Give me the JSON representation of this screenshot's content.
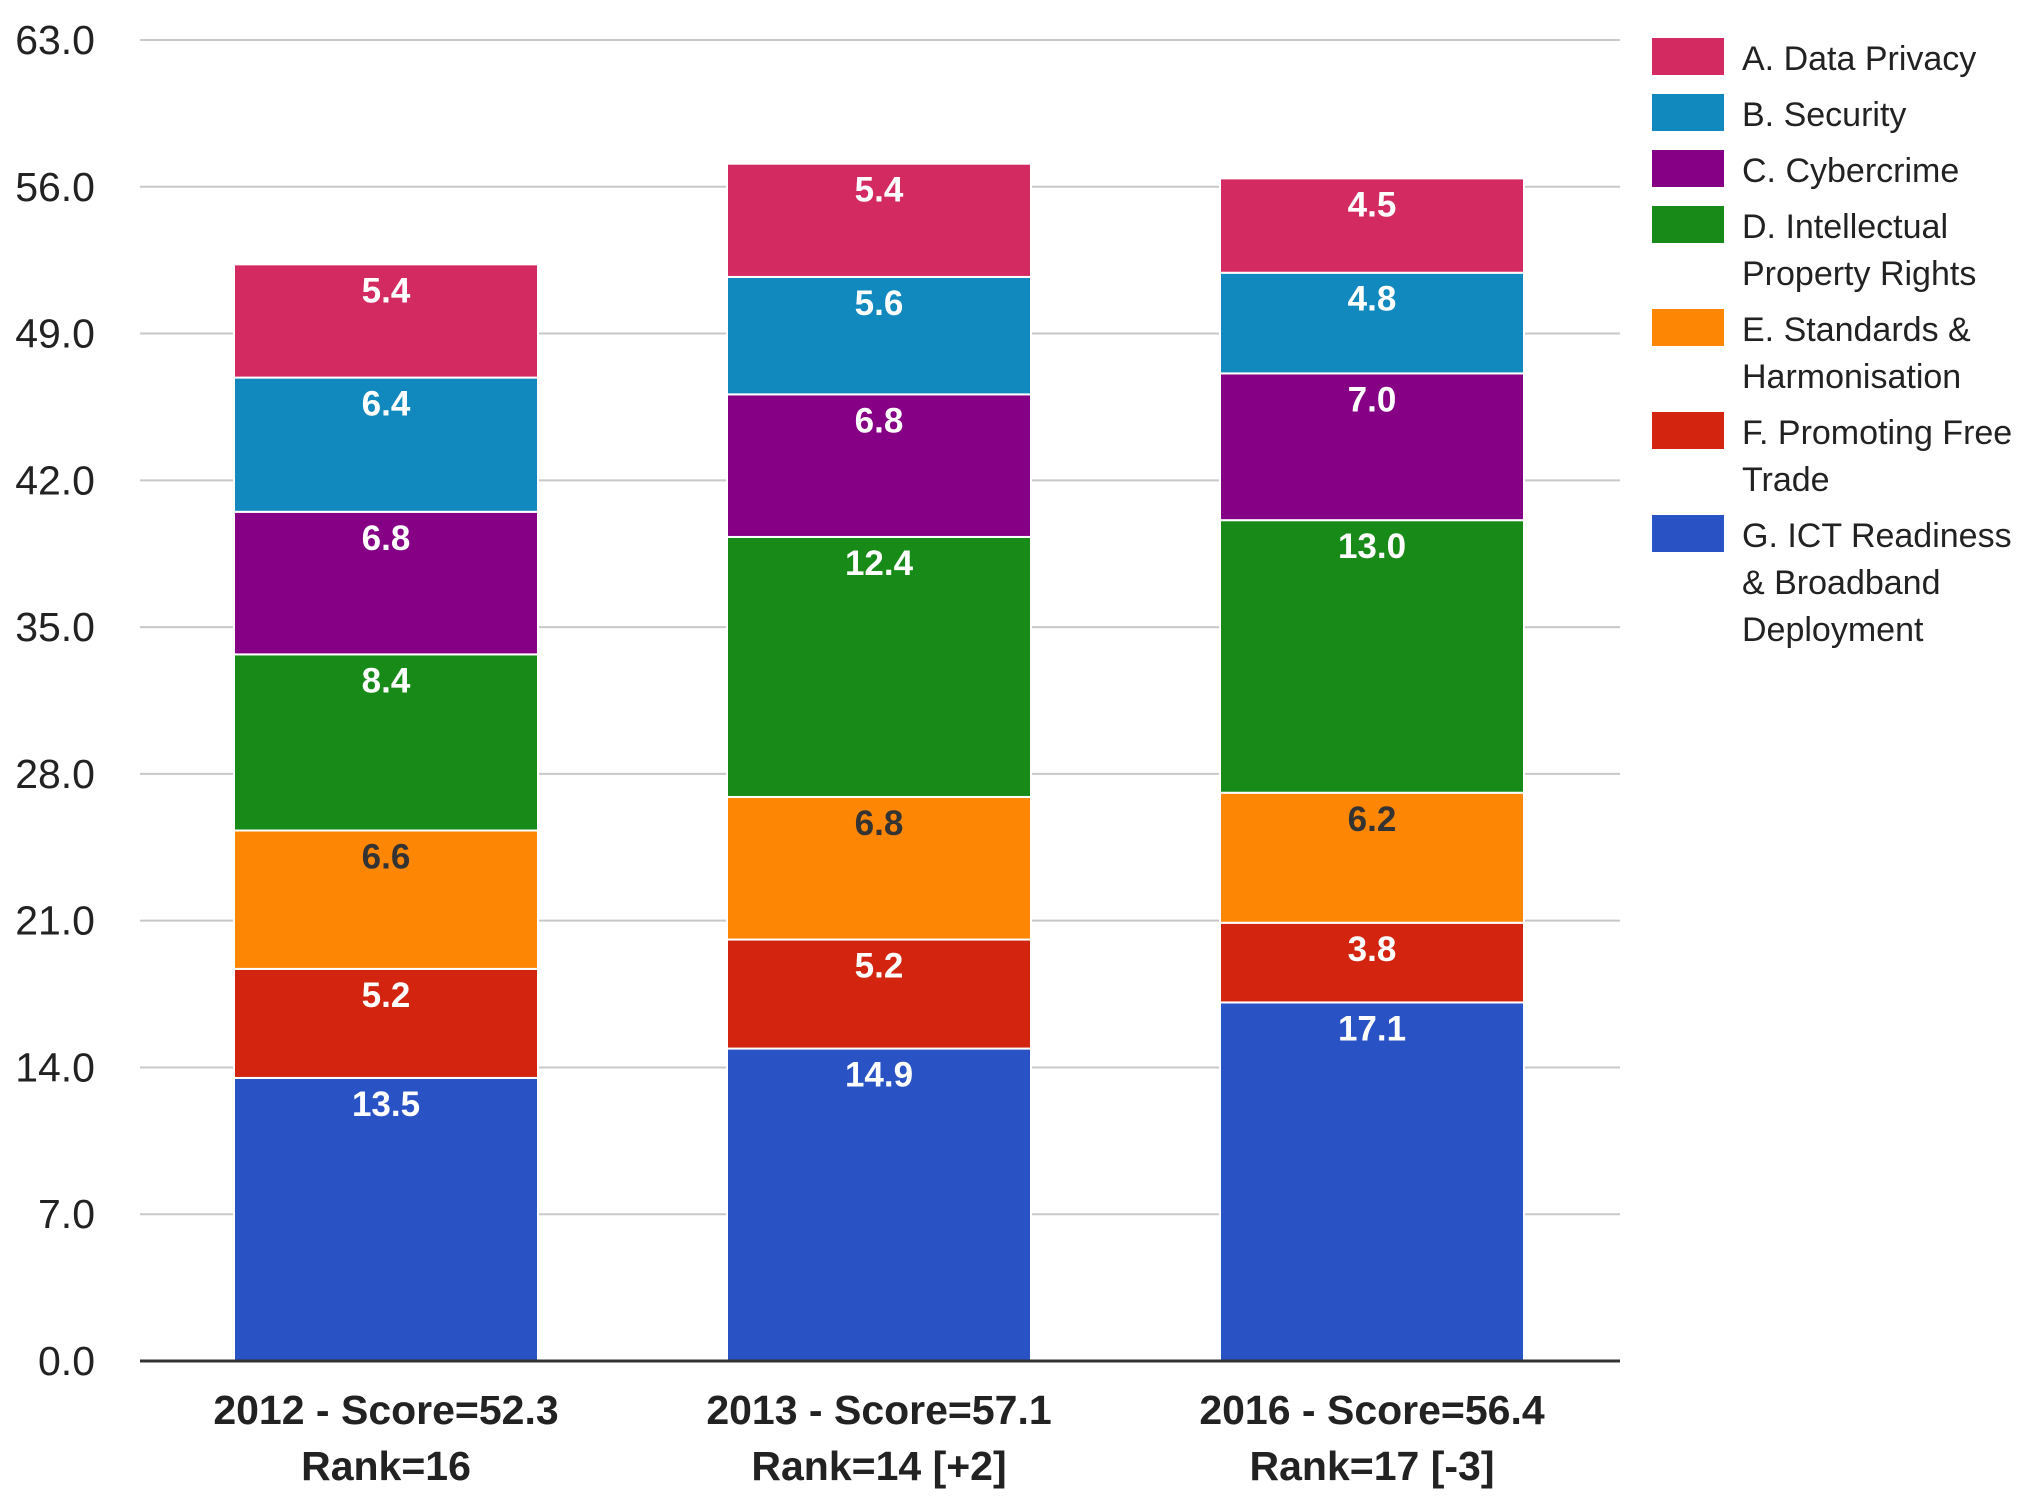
{
  "chart_data": {
    "type": "bar",
    "stacked": true,
    "categories": [
      [
        "2012 - Score=52.3",
        "Rank=16"
      ],
      [
        "2013 - Score=57.1",
        "Rank=14 [+2]"
      ],
      [
        "2016 - Score=56.4",
        "Rank=17 [-3]"
      ]
    ],
    "y_ticks": [
      "0.0",
      "7.0",
      "14.0",
      "21.0",
      "28.0",
      "35.0",
      "42.0",
      "49.0",
      "56.0",
      "63.0"
    ],
    "ylim": [
      0,
      63
    ],
    "grid": true,
    "legend_position": "right",
    "series": [
      {
        "name": "G. ICT Readiness & Broadband Deployment",
        "legend_lines": [
          "G. ICT Readiness",
          "& Broadband",
          "Deployment"
        ],
        "color": "#2952c4",
        "label_color": "#ffffff",
        "values": [
          13.5,
          14.9,
          17.1
        ],
        "labels": [
          "13.5",
          "14.9",
          "17.1"
        ]
      },
      {
        "name": "F. Promoting Free Trade",
        "legend_lines": [
          "F. Promoting Free",
          "Trade"
        ],
        "color": "#d2240f",
        "label_color": "#ffffff",
        "values": [
          5.2,
          5.2,
          3.8
        ],
        "labels": [
          "5.2",
          "5.2",
          "3.8"
        ]
      },
      {
        "name": "E. Standards & Harmonisation",
        "legend_lines": [
          "E. Standards &",
          "Harmonisation"
        ],
        "color": "#fd8605",
        "label_color": "#333333",
        "values": [
          6.6,
          6.8,
          6.2
        ],
        "labels": [
          "6.6",
          "6.8",
          "6.2"
        ]
      },
      {
        "name": "D. Intellectual Property Rights",
        "legend_lines": [
          "D. Intellectual",
          "Property Rights"
        ],
        "color": "#178a17",
        "label_color": "#ffffff",
        "values": [
          8.4,
          12.4,
          13.0
        ],
        "labels": [
          "8.4",
          "12.4",
          "13.0"
        ]
      },
      {
        "name": "C. Cybercrime",
        "legend_lines": [
          "C. Cybercrime"
        ],
        "color": "#850085",
        "label_color": "#ffffff",
        "values": [
          6.8,
          6.8,
          7.0
        ],
        "labels": [
          "6.8",
          "6.8",
          "7.0"
        ]
      },
      {
        "name": "B. Security",
        "legend_lines": [
          "B. Security"
        ],
        "color": "#1289be",
        "label_color": "#ffffff",
        "values": [
          6.4,
          5.6,
          4.8
        ],
        "labels": [
          "6.4",
          "5.6",
          "4.8"
        ]
      },
      {
        "name": "A. Data Privacy",
        "legend_lines": [
          "A. Data Privacy"
        ],
        "color": "#d42a62",
        "label_color": "#ffffff",
        "values": [
          5.4,
          5.4,
          4.5
        ],
        "labels": [
          "5.4",
          "5.4",
          "4.5"
        ]
      }
    ],
    "legend_order": [
      "A. Data Privacy",
      "B. Security",
      "C. Cybercrime",
      "D. Intellectual Property Rights",
      "E. Standards & Harmonisation",
      "F. Promoting Free Trade",
      "G. ICT Readiness & Broadband Deployment"
    ],
    "colors": {
      "gridline": "#c8c8c8",
      "axis": "#333333",
      "text": "#222222"
    }
  }
}
